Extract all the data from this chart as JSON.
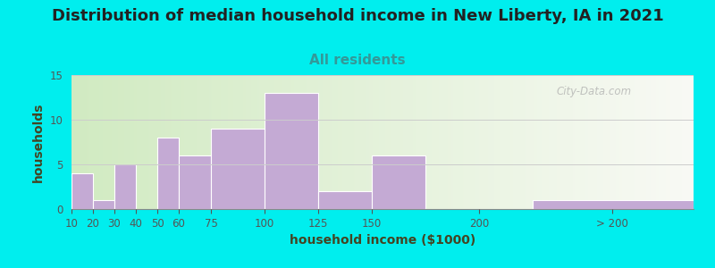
{
  "title": "Distribution of median household income in New Liberty, IA in 2021",
  "subtitle": "All residents",
  "xlabel": "household income ($1000)",
  "ylabel": "households",
  "background_outer": "#00EEEE",
  "bar_color": "#c4aad4",
  "bar_edge_color": "#b090c0",
  "bar_positions": [
    10,
    20,
    30,
    40,
    50,
    60,
    75,
    100,
    125,
    150,
    200,
    225
  ],
  "bar_widths": [
    10,
    10,
    10,
    10,
    10,
    15,
    25,
    25,
    25,
    25,
    25,
    75
  ],
  "bar_heights": [
    4,
    1,
    5,
    0,
    8,
    6,
    9,
    13,
    2,
    6,
    0,
    1
  ],
  "xtick_labels": [
    "10",
    "20",
    "30",
    "40",
    "50",
    "60",
    "75",
    "100",
    "125",
    "150",
    "200",
    "> 200"
  ],
  "xtick_positions": [
    10,
    20,
    30,
    40,
    50,
    60,
    75,
    100,
    125,
    150,
    200,
    262
  ],
  "ylim": [
    0,
    15
  ],
  "yticks": [
    0,
    5,
    10,
    15
  ],
  "xlim_left": 10,
  "xlim_right": 300,
  "title_fontsize": 13,
  "subtitle_fontsize": 11,
  "axis_label_fontsize": 10,
  "watermark": "City-Data.com",
  "title_color": "#222222",
  "subtitle_color": "#339999",
  "axis_label_color": "#444422",
  "tick_label_color": "#333333"
}
